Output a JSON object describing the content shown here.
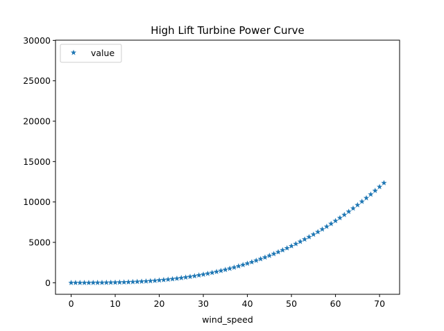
{
  "chart_data": {
    "type": "scatter",
    "title": "High Lift Turbine Power Curve",
    "xlabel": "wind_speed",
    "ylabel": "",
    "xlim": [
      -3.55,
      74.55
    ],
    "ylim": [
      -1430,
      30030
    ],
    "xticks": [
      0,
      10,
      20,
      30,
      40,
      50,
      60,
      70
    ],
    "yticks": [
      0,
      5000,
      10000,
      15000,
      20000,
      25000,
      30000
    ],
    "grid": false,
    "legend_position": "top-left",
    "marker": "star",
    "color": "#1f77b4",
    "series": [
      {
        "name": "value",
        "x": [
          0,
          1,
          2,
          3,
          4,
          5,
          6,
          7,
          8,
          9,
          10,
          11,
          12,
          13,
          14,
          15,
          16,
          17,
          18,
          19,
          20,
          21,
          22,
          23,
          24,
          25,
          26,
          27,
          28,
          29,
          30,
          31,
          32,
          33,
          34,
          35,
          36,
          37,
          38,
          39,
          40,
          41,
          42,
          43,
          44,
          45,
          46,
          47,
          48,
          49,
          50,
          51,
          52,
          53,
          54,
          55,
          56,
          57,
          58,
          59,
          60,
          61,
          62,
          63,
          64,
          65,
          66,
          67,
          68,
          69,
          70,
          71
        ],
        "y": [
          0,
          0,
          1,
          1,
          3,
          5,
          9,
          13,
          19,
          27,
          37,
          50,
          65,
          83,
          104,
          128,
          155,
          186,
          221,
          261,
          305,
          353,
          406,
          465,
          528,
          597,
          671,
          751,
          837,
          929,
          1027,
          1131,
          1242,
          1360,
          1484,
          1616,
          1755,
          1901,
          2055,
          2216,
          2385,
          2563,
          2748,
          2942,
          3144,
          3355,
          3575,
          3804,
          4042,
          4289,
          4545,
          4811,
          5087,
          5373,
          5669,
          5974,
          6290,
          6617,
          6954,
          7302,
          7661,
          8030,
          8411,
          8803,
          9206,
          9621,
          10048,
          10486,
          10936,
          11398,
          11872,
          12358
        ]
      }
    ]
  }
}
